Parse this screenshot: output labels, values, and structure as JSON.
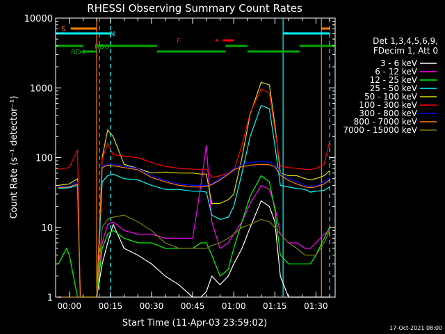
{
  "chart_data": {
    "type": "line",
    "title": "RHESSI Observing Summary Count Rates",
    "xlabel": "Start Time (11-Apr-03 23:59:02)",
    "ylabel": "Count Rate (s⁻¹ detector⁻¹)",
    "yscale": "log",
    "ylim": [
      1,
      10000
    ],
    "xlim_minutes": [
      -5,
      97
    ],
    "x_ticks": [
      {
        "label": "00:00",
        "minutes": 0
      },
      {
        "label": "00:15",
        "minutes": 15
      },
      {
        "label": "00:30",
        "minutes": 30
      },
      {
        "label": "00:45",
        "minutes": 45
      },
      {
        "label": "01:00",
        "minutes": 60
      },
      {
        "label": "01:15",
        "minutes": 75
      },
      {
        "label": "01:30",
        "minutes": 90
      }
    ],
    "y_ticks": [
      {
        "label": "1",
        "value": 1
      },
      {
        "label": "10",
        "value": 10
      },
      {
        "label": "100",
        "value": 100
      },
      {
        "label": "1000",
        "value": 1000
      },
      {
        "label": "10000",
        "value": 10000
      }
    ],
    "legend": {
      "header": [
        "Det 1,3,4,5,6,9,",
        "FDecim 1, Att 0"
      ],
      "placement": "right"
    },
    "series": [
      {
        "name": "3 - 6 keV",
        "color": "#ffffff",
        "x": [
          -4,
          0,
          3,
          4,
          10,
          12,
          14,
          16,
          20,
          25,
          30,
          35,
          40,
          45,
          48,
          50,
          52,
          55,
          58,
          60,
          63,
          66,
          70,
          73,
          75,
          77,
          80,
          83,
          86,
          88,
          90,
          93,
          95
        ],
        "y": [
          1,
          1,
          1,
          1,
          1,
          3,
          6,
          11,
          5,
          4,
          3,
          2,
          1.5,
          1,
          1,
          1.2,
          2,
          1.5,
          2,
          3,
          5,
          10,
          24,
          20,
          12,
          2,
          1,
          1,
          1,
          1,
          1,
          1,
          1
        ]
      },
      {
        "name": "6 - 12 keV",
        "color": "#ff00ff",
        "x": [
          -4,
          0,
          3,
          4,
          10,
          12,
          14,
          16,
          20,
          25,
          30,
          35,
          40,
          45,
          48,
          50,
          52,
          55,
          58,
          60,
          63,
          66,
          70,
          73,
          75,
          77,
          80,
          83,
          86,
          88,
          90,
          93,
          95
        ],
        "y": [
          1,
          1,
          1,
          1,
          1,
          6,
          11,
          12,
          9,
          8,
          8,
          7,
          7,
          7,
          40,
          150,
          12,
          5,
          6,
          8,
          12,
          22,
          40,
          35,
          20,
          8,
          6,
          6,
          5,
          5,
          6,
          8,
          9
        ]
      },
      {
        "name": "12 - 25 keV",
        "color": "#00ff00",
        "x": [
          -4,
          -1,
          0,
          3,
          4,
          10,
          12,
          14,
          16,
          20,
          25,
          30,
          35,
          40,
          45,
          48,
          50,
          52,
          55,
          58,
          60,
          63,
          66,
          70,
          73,
          75,
          77,
          80,
          83,
          86,
          88,
          90,
          93,
          95
        ],
        "y": [
          3,
          5,
          4,
          1,
          1,
          1,
          5,
          8,
          9,
          7,
          6,
          6,
          5,
          5,
          5,
          6,
          6,
          4,
          2,
          2.5,
          5,
          12,
          28,
          55,
          45,
          18,
          4,
          3,
          3,
          3,
          3,
          4,
          7,
          10
        ]
      },
      {
        "name": "25 - 50 keV",
        "color": "#00ffff",
        "x": [
          -4,
          0,
          3,
          4,
          10,
          12,
          14,
          16,
          20,
          25,
          30,
          35,
          40,
          45,
          48,
          50,
          52,
          55,
          58,
          60,
          63,
          66,
          70,
          73,
          75,
          77,
          80,
          83,
          86,
          88,
          90,
          93,
          95
        ],
        "y": [
          36,
          37,
          40,
          1,
          1,
          45,
          55,
          58,
          50,
          48,
          40,
          35,
          35,
          33,
          33,
          32,
          15,
          13,
          14,
          20,
          60,
          200,
          560,
          500,
          150,
          40,
          38,
          36,
          35,
          32,
          33,
          34,
          38
        ]
      },
      {
        "name": "50 - 100 keV",
        "color": "#dddd00",
        "x": [
          -4,
          0,
          3,
          4,
          10,
          12,
          14,
          16,
          20,
          25,
          30,
          35,
          40,
          45,
          48,
          50,
          52,
          55,
          58,
          60,
          63,
          66,
          70,
          73,
          75,
          77,
          80,
          83,
          86,
          88,
          90,
          93,
          95
        ],
        "y": [
          40,
          42,
          50,
          1,
          1,
          100,
          250,
          200,
          80,
          70,
          60,
          62,
          60,
          60,
          58,
          58,
          22,
          22,
          25,
          30,
          100,
          420,
          1200,
          1100,
          300,
          60,
          55,
          55,
          50,
          48,
          50,
          55,
          65
        ]
      },
      {
        "name": "100 - 300 keV",
        "color": "#ff0000",
        "x": [
          -4,
          0,
          3,
          4,
          10,
          12,
          14,
          16,
          20,
          25,
          30,
          35,
          40,
          45,
          48,
          50,
          52,
          55,
          58,
          60,
          63,
          66,
          70,
          73,
          75,
          77,
          80,
          83,
          86,
          88,
          90,
          93,
          95
        ],
        "y": [
          68,
          72,
          130,
          1,
          1,
          95,
          160,
          110,
          105,
          100,
          85,
          75,
          70,
          68,
          68,
          68,
          52,
          55,
          60,
          65,
          150,
          440,
          960,
          850,
          250,
          75,
          72,
          70,
          68,
          67,
          70,
          80,
          170
        ]
      },
      {
        "name": "300 - 800 keV",
        "color": "#0000ff",
        "x": [
          -4,
          0,
          3,
          4,
          10,
          12,
          14,
          16,
          20,
          25,
          30,
          35,
          40,
          45,
          48,
          50,
          52,
          55,
          58,
          60,
          63,
          66,
          70,
          73,
          75,
          77,
          80,
          83,
          86,
          88,
          90,
          93,
          95
        ],
        "y": [
          38,
          39,
          45,
          1,
          1,
          75,
          82,
          80,
          75,
          70,
          55,
          47,
          42,
          40,
          40,
          40,
          42,
          50,
          60,
          70,
          80,
          85,
          88,
          86,
          80,
          60,
          50,
          45,
          40,
          38,
          40,
          44,
          52
        ]
      },
      {
        "name": "800 - 7000 keV",
        "color": "#ff8000",
        "x": [
          -4,
          0,
          3,
          4,
          10,
          12,
          14,
          16,
          20,
          25,
          30,
          35,
          40,
          45,
          48,
          50,
          52,
          55,
          58,
          60,
          63,
          66,
          70,
          73,
          75,
          77,
          80,
          83,
          86,
          88,
          90,
          93,
          95
        ],
        "y": [
          37,
          38,
          42,
          1,
          1,
          72,
          78,
          76,
          72,
          67,
          52,
          45,
          40,
          38,
          38,
          39,
          41,
          48,
          58,
          67,
          74,
          78,
          80,
          79,
          74,
          56,
          47,
          42,
          38,
          37,
          38,
          42,
          48
        ]
      },
      {
        "name": "7000 - 15000 keV",
        "color": "#808000",
        "x": [
          -4,
          0,
          3,
          4,
          10,
          12,
          14,
          16,
          20,
          25,
          30,
          35,
          40,
          45,
          48,
          50,
          52,
          55,
          58,
          60,
          63,
          66,
          70,
          73,
          75,
          77,
          80,
          83,
          86,
          88,
          90,
          93,
          95
        ],
        "y": [
          1,
          1,
          1,
          1,
          1,
          10,
          13,
          14,
          15,
          12,
          9,
          6,
          5,
          5,
          5,
          5,
          5.5,
          6,
          7,
          8,
          10,
          11,
          13,
          12,
          10,
          8,
          6,
          5,
          4,
          4,
          4,
          6,
          9
        ]
      }
    ],
    "vertical_lines": [
      {
        "minutes": 10,
        "color": "#ff8000",
        "style": "solid"
      },
      {
        "minutes": 11,
        "color": "#ff8000",
        "style": "dashed"
      },
      {
        "minutes": 15,
        "color": "#00ffff",
        "style": "dashed"
      },
      {
        "minutes": 78,
        "color": "#00ffff",
        "style": "solid"
      },
      {
        "minutes": 92,
        "color": "#ff8000",
        "style": "solid"
      },
      {
        "minutes": 95,
        "color": "#00ffff",
        "style": "dashed"
      }
    ],
    "annotations": [
      {
        "text": "S",
        "color": "#ff8000"
      },
      {
        "text": "N",
        "color": "#00ffff"
      },
      {
        "text": "RD0",
        "color": "#00aa00"
      },
      {
        "text": "RD4",
        "color": "#00aa00"
      },
      {
        "text": "F",
        "color": "#ff0000"
      }
    ],
    "footer_timestamp": "17-Oct-2021 08:00"
  }
}
